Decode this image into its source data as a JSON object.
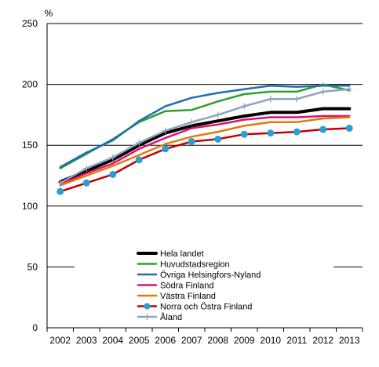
{
  "chart_data": {
    "type": "line",
    "title": "",
    "xlabel": "",
    "ylabel": "%",
    "ylim": [
      0,
      250
    ],
    "yticks": [
      0,
      50,
      100,
      150,
      200,
      250
    ],
    "x": [
      "2002",
      "2003",
      "2004",
      "2005",
      "2006",
      "2007",
      "2008",
      "2009",
      "2010",
      "2011",
      "2012",
      "2013"
    ],
    "grid": "horizontal",
    "legend_position": "bottom-center",
    "series": [
      {
        "name": "Hela landet",
        "color": "#000000",
        "marker": "none",
        "width": 4,
        "values": [
          120,
          129,
          138,
          150,
          160,
          166,
          170,
          174,
          177,
          177,
          180,
          180
        ]
      },
      {
        "name": "Huvudstadsregion",
        "color": "#2ca02c",
        "marker": "none",
        "width": 2.5,
        "values": [
          131,
          143,
          155,
          169,
          178,
          179,
          186,
          192,
          194,
          194,
          200,
          195
        ]
      },
      {
        "name": "Övriga Helsingfors-Nyland",
        "color": "#1f6fb4",
        "marker": "none",
        "width": 2.5,
        "values": [
          132,
          144,
          154,
          170,
          182,
          189,
          193,
          196,
          199,
          198,
          199,
          199
        ]
      },
      {
        "name": "Södra Finland",
        "color": "#e0106a",
        "marker": "none",
        "width": 2.5,
        "values": [
          118,
          127,
          135,
          147,
          156,
          164,
          167,
          171,
          173,
          173,
          174,
          174
        ]
      },
      {
        "name": "Västra Finland",
        "color": "#e07b0a",
        "marker": "none",
        "width": 2.5,
        "values": [
          117,
          125,
          133,
          142,
          151,
          157,
          161,
          166,
          169,
          169,
          172,
          173
        ]
      },
      {
        "name": "Norra och Östra Finland",
        "color": "#c00000",
        "marker": "circle",
        "markerColor": "#2a9fd6",
        "width": 2.5,
        "values": [
          112,
          119,
          126,
          138,
          147,
          153,
          155,
          159,
          160,
          161,
          163,
          164
        ]
      },
      {
        "name": "Åland",
        "color": "#8fa3bf",
        "marker": "plus",
        "width": 2.5,
        "values": [
          119,
          131,
          140,
          152,
          162,
          169,
          175,
          182,
          188,
          188,
          194,
          196
        ]
      }
    ]
  }
}
